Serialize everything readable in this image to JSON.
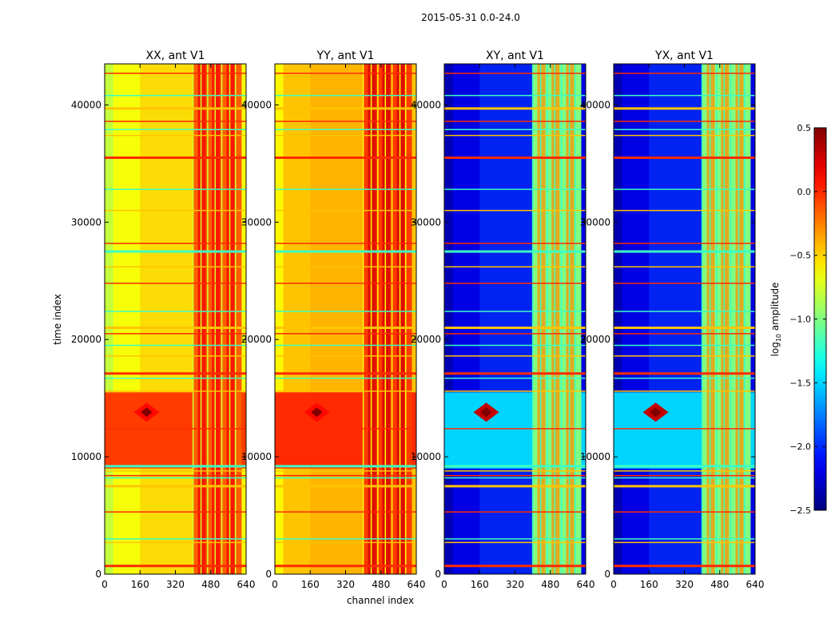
{
  "suptitle": "2015-05-31 0.0-24.0",
  "chart_data": {
    "type": "heatmap",
    "suptitle": "2015-05-31 0.0-24.0",
    "xlabel": "channel index",
    "ylabel": "time index",
    "xlim": [
      0,
      640
    ],
    "ylim": [
      0,
      43500
    ],
    "x_ticks": [
      0,
      160,
      320,
      480,
      640
    ],
    "y_ticks": [
      0,
      10000,
      20000,
      30000,
      40000
    ],
    "colormap": "jet",
    "colorbar": {
      "label_base": "log",
      "label_sub": "10",
      "label_rest": " amplitude",
      "range": [
        -2.5,
        0.5
      ],
      "ticks": [
        0.5,
        0.0,
        -0.5,
        -1.0,
        -1.5,
        -2.0,
        -2.5
      ],
      "tick_labels": [
        "0.5",
        "0.0",
        "−0.5",
        "−1.0",
        "−1.5",
        "−2.0",
        "−2.5"
      ]
    },
    "panels": [
      {
        "title": "XX, ant V1",
        "background": -0.65,
        "band": -0.15,
        "band_peak": 0.15,
        "middle": -0.4,
        "burst": 0.1,
        "burst_range": [
          9000,
          15500
        ],
        "burst_level": -0.05
      },
      {
        "title": "YY, ant V1",
        "background": -0.45,
        "band": -0.05,
        "band_peak": 0.25,
        "middle": -0.35,
        "burst": 0.1,
        "burst_range": [
          9000,
          15500
        ],
        "burst_level": 0.0
      },
      {
        "title": "XY, ant V1",
        "background": -2.2,
        "band": -1.0,
        "band_peak": -0.3,
        "middle": -1.9,
        "burst": 0.3,
        "burst_range": [
          9000,
          15500
        ],
        "burst_level": -1.5
      },
      {
        "title": "YX, ant V1",
        "background": -2.2,
        "band": -1.0,
        "band_peak": -0.3,
        "middle": -1.9,
        "burst": 0.3,
        "burst_range": [
          9000,
          15500
        ],
        "burst_level": -1.5
      }
    ],
    "flag_rows": [
      700,
      2700,
      3000,
      5300,
      7500,
      8200,
      8400,
      8800,
      9200,
      12400,
      15600,
      16700,
      17100,
      18600,
      19500,
      20500,
      21000,
      22400,
      24800,
      26200,
      27500,
      28200,
      31000,
      32800,
      35500,
      37400,
      37900,
      38600,
      39700,
      40800,
      42700
    ],
    "vertical_lines": [
      400,
      436,
      466,
      500,
      530,
      566,
      592
    ]
  }
}
